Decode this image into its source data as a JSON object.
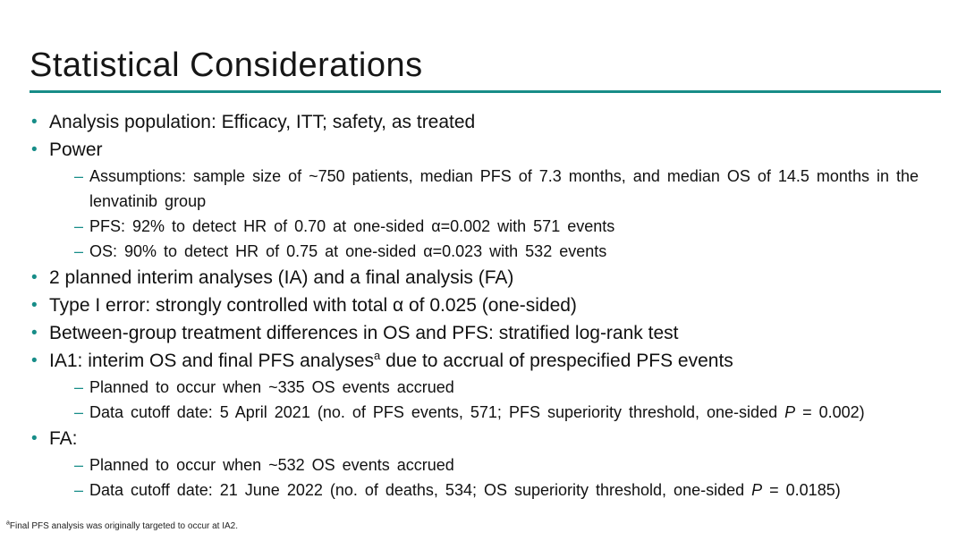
{
  "slide": {
    "title": "Statistical Considerations",
    "accent_color": "#178d88",
    "footnote": "^a^Final PFS analysis was originally targeted to occur at IA2."
  },
  "bullets": [
    {
      "level": 1,
      "text": "Analysis population: Efficacy, ITT; safety, as treated"
    },
    {
      "level": 1,
      "text": "Power"
    },
    {
      "level": 2,
      "text": "Assumptions: sample size of ~750 patients, median PFS of 7.3 months, and median OS of 14.5 months in the lenvatinib group"
    },
    {
      "level": 2,
      "text": "PFS: 92% to detect HR of 0.70 at one-sided α=0.002 with 571 events"
    },
    {
      "level": 2,
      "text": "OS: 90% to detect HR of 0.75 at one-sided α=0.023 with 532 events"
    },
    {
      "level": 1,
      "text": "2 planned interim analyses (IA) and a final analysis (FA)"
    },
    {
      "level": 1,
      "text": "Type I error: strongly controlled with total α of 0.025 (one-sided)"
    },
    {
      "level": 1,
      "text": "Between-group treatment differences in OS and PFS: stratified log-rank test"
    },
    {
      "level": 1,
      "text": "IA1: interim OS and final PFS analyses^a^ due to accrual of prespecified PFS events"
    },
    {
      "level": 2,
      "text": "Planned to occur when ~335 OS events accrued"
    },
    {
      "level": 2,
      "text": "Data cutoff date: 5 April 2021 (no. of PFS events, 571; PFS superiority threshold, one-sided *P* = 0.002)"
    },
    {
      "level": 1,
      "text": "FA:"
    },
    {
      "level": 2,
      "text": "Planned to occur when ~532 OS events accrued"
    },
    {
      "level": 2,
      "text": "Data cutoff date: 21 June 2022 (no. of deaths, 534; OS superiority threshold, one-sided *P* = 0.0185)"
    }
  ],
  "markers": {
    "level1": "•",
    "level2": "–"
  }
}
